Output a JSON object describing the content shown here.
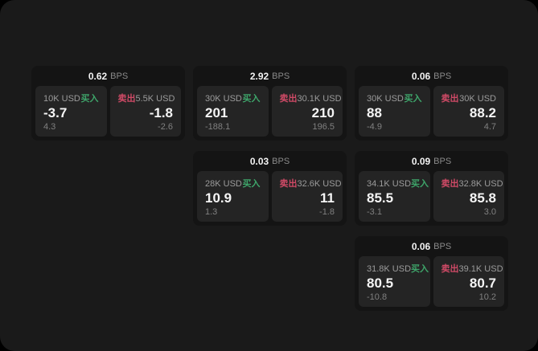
{
  "theme": {
    "page_bg": "#1a1a1a",
    "card_bg": "#141414",
    "panel_bg": "#242424",
    "buy_color": "#3ea56a",
    "sell_color": "#cf4a66"
  },
  "labels": {
    "bps_unit": "BPS",
    "buy": "买入",
    "sell": "卖出"
  },
  "cards": [
    {
      "bps": "0.62",
      "buy": {
        "amount": "10K USD",
        "value": "-3.7",
        "sub": "4.3"
      },
      "sell": {
        "amount": "5.5K USD",
        "value": "-1.8",
        "sub": "-2.6"
      }
    },
    {
      "bps": "2.92",
      "buy": {
        "amount": "30K USD",
        "value": "201",
        "sub": "-188.1"
      },
      "sell": {
        "amount": "30.1K USD",
        "value": "210",
        "sub": "196.5"
      }
    },
    {
      "bps": "0.06",
      "buy": {
        "amount": "30K USD",
        "value": "88",
        "sub": "-4.9"
      },
      "sell": {
        "amount": "30K USD",
        "value": "88.2",
        "sub": "4.7"
      }
    },
    {
      "bps": "0.03",
      "buy": {
        "amount": "28K USD",
        "value": "10.9",
        "sub": "1.3"
      },
      "sell": {
        "amount": "32.6K USD",
        "value": "11",
        "sub": "-1.8"
      }
    },
    {
      "bps": "0.09",
      "buy": {
        "amount": "34.1K USD",
        "value": "85.5",
        "sub": "-3.1"
      },
      "sell": {
        "amount": "32.8K USD",
        "value": "85.8",
        "sub": "3.0"
      }
    },
    {
      "bps": "0.06",
      "buy": {
        "amount": "31.8K USD",
        "value": "80.5",
        "sub": "-10.8"
      },
      "sell": {
        "amount": "39.1K USD",
        "value": "80.7",
        "sub": "10.2"
      }
    }
  ]
}
